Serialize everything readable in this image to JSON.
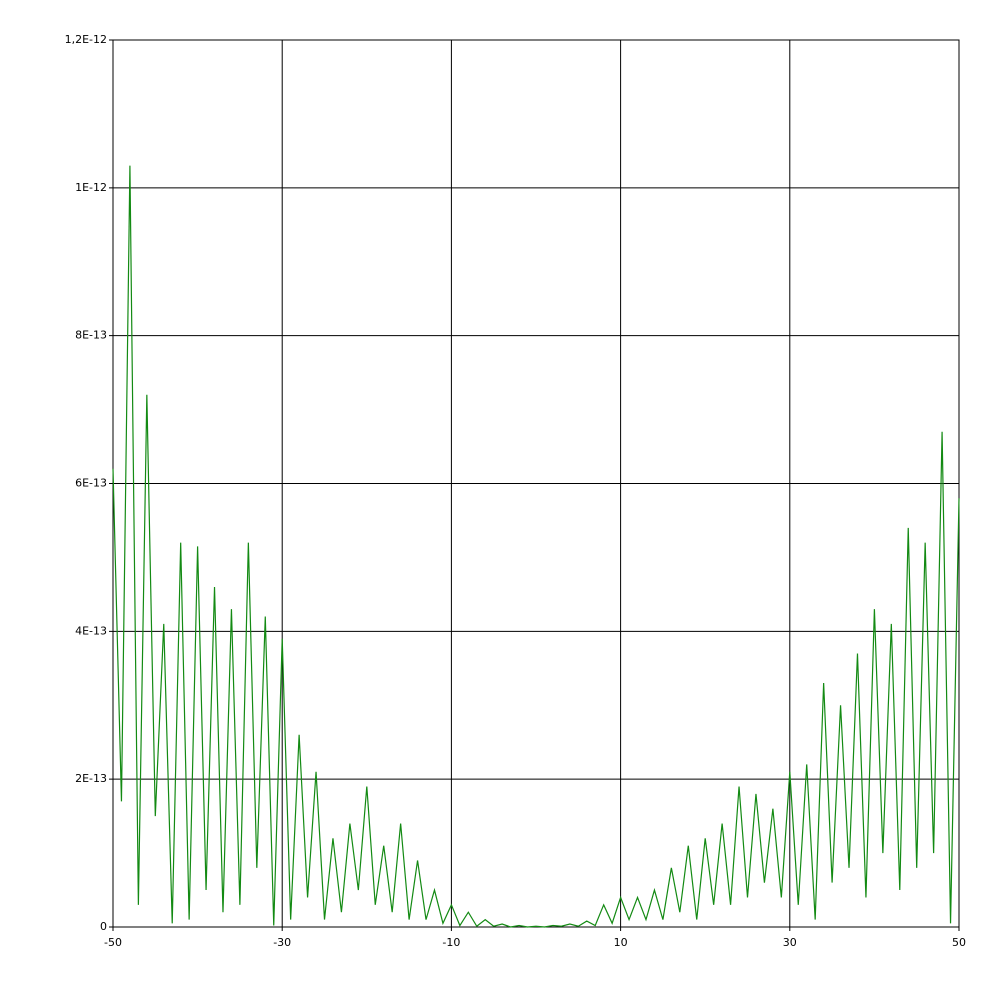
{
  "chart_data": {
    "type": "line",
    "x": [
      -50,
      -49,
      -48,
      -47,
      -46,
      -45,
      -44,
      -43,
      -42,
      -41,
      -40,
      -39,
      -38,
      -37,
      -36,
      -35,
      -34,
      -33,
      -32,
      -31,
      -30,
      -29,
      -28,
      -27,
      -26,
      -25,
      -24,
      -23,
      -22,
      -21,
      -20,
      -19,
      -18,
      -17,
      -16,
      -15,
      -14,
      -13,
      -12,
      -11,
      -10,
      -9,
      -8,
      -7,
      -6,
      -5,
      -4,
      -3,
      -2,
      -1,
      0,
      1,
      2,
      3,
      4,
      5,
      6,
      7,
      8,
      9,
      10,
      11,
      12,
      13,
      14,
      15,
      16,
      17,
      18,
      19,
      20,
      21,
      22,
      23,
      24,
      25,
      26,
      27,
      28,
      29,
      30,
      31,
      32,
      33,
      34,
      35,
      36,
      37,
      38,
      39,
      40,
      41,
      42,
      43,
      44,
      45,
      46,
      47,
      48,
      49,
      50
    ],
    "series": [
      {
        "color": "#138a13",
        "values": [
          6.2e-13,
          1.7e-13,
          1.03e-12,
          3e-14,
          7.2e-13,
          1.5e-13,
          4.1e-13,
          5e-15,
          5.2e-13,
          1e-14,
          5.15e-13,
          5e-14,
          4.6e-13,
          2e-14,
          4.3e-13,
          3e-14,
          5.2e-13,
          8e-14,
          4.2e-13,
          2e-15,
          3.9e-13,
          1e-14,
          2.6e-13,
          4e-14,
          2.1e-13,
          1e-14,
          1.2e-13,
          2e-14,
          1.4e-13,
          5e-14,
          1.9e-13,
          3e-14,
          1.1e-13,
          2e-14,
          1.4e-13,
          1e-14,
          9e-14,
          1e-14,
          5e-14,
          5e-15,
          3e-14,
          2e-15,
          2e-14,
          1e-15,
          1e-14,
          1e-15,
          4e-15,
          0,
          2e-15,
          0,
          1e-15,
          0,
          2e-15,
          1e-15,
          4e-15,
          1e-15,
          8e-15,
          2e-15,
          3e-14,
          5e-15,
          4e-14,
          1e-14,
          4e-14,
          1e-14,
          5e-14,
          1e-14,
          8e-14,
          2e-14,
          1.1e-13,
          1e-14,
          1.2e-13,
          3e-14,
          1.4e-13,
          3e-14,
          1.9e-13,
          4e-14,
          1.8e-13,
          6e-14,
          1.6e-13,
          4e-14,
          2.1e-13,
          3e-14,
          2.2e-13,
          1e-14,
          3.3e-13,
          6e-14,
          3e-13,
          8e-14,
          3.7e-13,
          4e-14,
          4.3e-13,
          1e-13,
          4.1e-13,
          5e-14,
          5.4e-13,
          8e-14,
          5.2e-13,
          1e-13,
          6.7e-13,
          5e-15,
          5.8e-13
        ]
      }
    ],
    "xlim": [
      -50,
      50
    ],
    "xticks": [
      -50,
      -30,
      -10,
      10,
      30,
      50
    ],
    "ylim": [
      0,
      1.2e-12
    ],
    "yticks": [
      0,
      {
        "value": 2e-13,
        "label": "2E-13"
      },
      {
        "value": 4e-13,
        "label": "4E-13"
      },
      {
        "value": 6e-13,
        "label": "6E-13"
      },
      {
        "value": 8e-13,
        "label": "8E-13"
      },
      {
        "value": 1e-12,
        "label": "1E-12"
      },
      {
        "value": 1.2e-12,
        "label": "1,2E-12"
      }
    ],
    "grid": true
  }
}
